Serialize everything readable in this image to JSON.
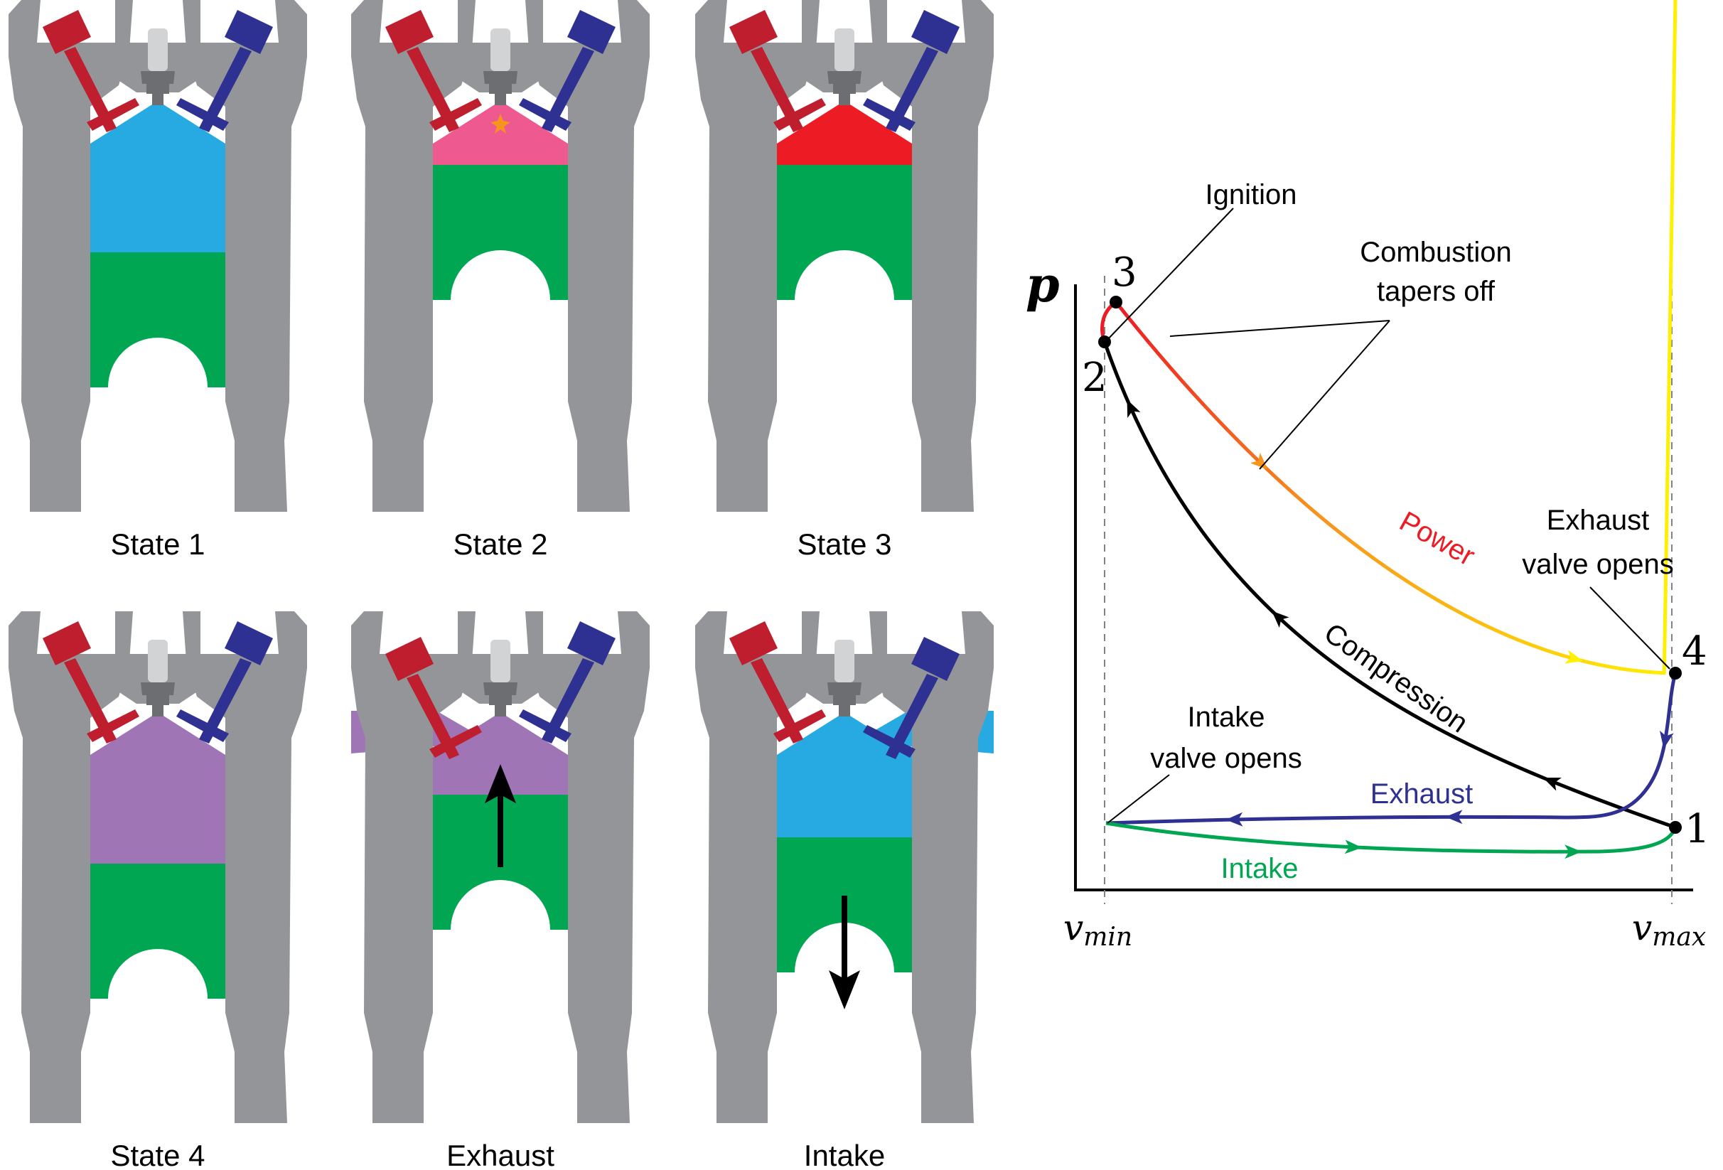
{
  "colors": {
    "block": "#939598",
    "intake_valve": "#be1e2d",
    "exhaust_valve": "#2e3192",
    "piston": "#00a651",
    "fresh_charge": "#27aae1",
    "ignition_charge": "#ee5a8f",
    "burned_hot": "#ed1c24",
    "exhaust_gas": "#9f75b5",
    "spark_plug_body": "#6d6e71",
    "spark_plug_tip": "#d1d3d4",
    "spark": "#f7941d"
  },
  "engine_states": [
    {
      "label": "State 1",
      "charge": "fresh",
      "piston": "bottom"
    },
    {
      "label": "State 2",
      "charge": "ignition",
      "piston": "top"
    },
    {
      "label": "State 3",
      "charge": "burned",
      "piston": "top"
    },
    {
      "label": "State 4",
      "charge": "exhaust",
      "piston": "bottom"
    },
    {
      "label": "Exhaust",
      "charge": "exhaust",
      "piston": "rising",
      "exhaust_valve": "open",
      "arrow": "up"
    },
    {
      "label": "Intake",
      "charge": "fresh",
      "piston": "falling",
      "intake_valve": "open",
      "arrow": "down"
    }
  ],
  "pv_diagram": {
    "axis_p": "p",
    "axis_v_min": "v",
    "axis_v_min_sub": "min",
    "axis_v_max": "v",
    "axis_v_max_sub": "max",
    "points": {
      "p1": "1",
      "p2": "2",
      "p3": "3",
      "p4": "4"
    },
    "curve_labels": {
      "power": "Power",
      "compression": "Compression",
      "exhaust": "Exhaust",
      "intake": "Intake"
    },
    "annotations": {
      "ignition": "Ignition",
      "combustion_line1": "Combustion",
      "combustion_line2": "tapers off",
      "exhaust_valve_line1": "Exhaust",
      "exhaust_valve_line2": "valve opens",
      "intake_valve_line1": "Intake",
      "intake_valve_line2": "valve opens"
    },
    "curve_colors": {
      "power_start": "#ed1c24",
      "power_mid": "#f7941d",
      "power_end": "#fff200",
      "compression": "#000000",
      "exhaust": "#2e3192",
      "intake": "#00a651"
    }
  }
}
